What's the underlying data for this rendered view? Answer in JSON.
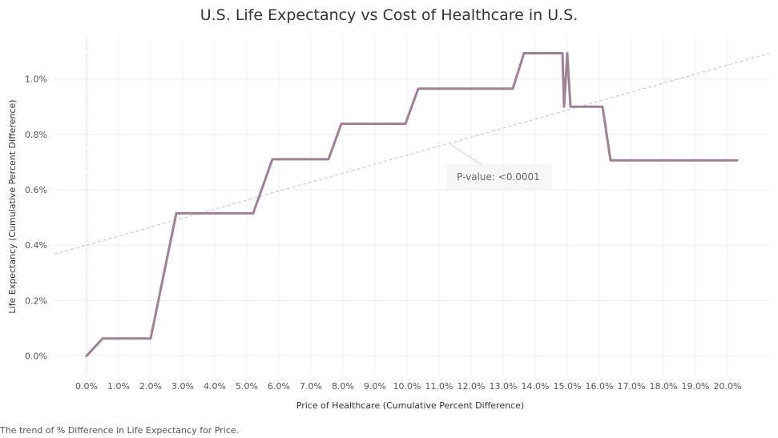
{
  "chart_data": {
    "type": "line",
    "title": "U.S. Life Expectancy vs Cost of Healthcare in U.S.",
    "xlabel": "Price of Healthcare (Cumulative Percent Difference)",
    "ylabel": "Life Expectancy (Cumulative Percent Difference)",
    "x_ticks": [
      "0.0%",
      "1.0%",
      "2.0%",
      "3.0%",
      "4.0%",
      "5.0%",
      "6.0%",
      "7.0%",
      "8.0%",
      "9.0%",
      "10.0%",
      "11.0%",
      "12.0%",
      "13.0%",
      "14.0%",
      "15.0%",
      "16.0%",
      "17.0%",
      "18.0%",
      "19.0%",
      "20.0%"
    ],
    "y_ticks": [
      "0.0%",
      "0.2%",
      "0.4%",
      "0.6%",
      "0.8%",
      "1.0%"
    ],
    "xlim": [
      -1.0,
      21.3
    ],
    "ylim": [
      -0.065,
      1.155
    ],
    "grid": true,
    "series": [
      {
        "x": [
          0.0,
          0.5,
          2.0,
          2.8,
          5.2,
          5.8,
          7.55,
          7.95,
          9.95,
          10.35,
          13.3,
          13.65,
          14.85,
          14.9,
          15.0,
          15.1,
          16.1,
          16.35,
          20.3
        ],
        "y": [
          0.0,
          0.063,
          0.063,
          0.515,
          0.515,
          0.71,
          0.71,
          0.838,
          0.838,
          0.965,
          0.965,
          1.093,
          1.093,
          0.9,
          1.093,
          0.9,
          0.9,
          0.706,
          0.706
        ],
        "color": "#a08095"
      }
    ],
    "trend_line": {
      "intercept": 0.4,
      "slope": 0.0325,
      "color": "#c0c0c0"
    },
    "annotation": "P-value: <0.0001"
  },
  "caption": "The trend of % Difference in Life Expectancy for Price."
}
